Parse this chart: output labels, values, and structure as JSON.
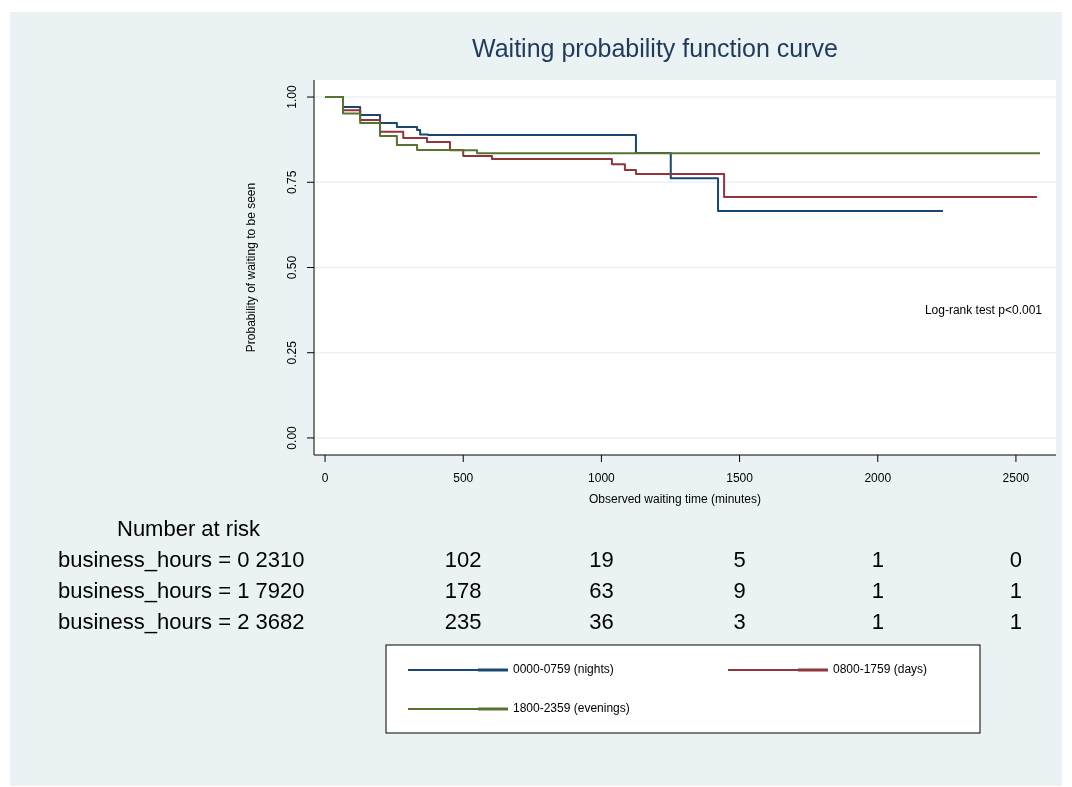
{
  "chart_data": {
    "type": "step",
    "title": "Waiting probability function curve",
    "xlabel": "Observed waiting time (minutes)",
    "ylabel": "Probability of waiting to be seen",
    "xlim": [
      -40,
      2645
    ],
    "ylim": [
      -0.05,
      1.05
    ],
    "xticks": [
      0,
      500,
      1000,
      1500,
      2000,
      2500
    ],
    "yticks": [
      {
        "value": 0,
        "label": "0.00"
      },
      {
        "value": 0.25,
        "label": "0.25"
      },
      {
        "value": 0.5,
        "label": "0.50"
      },
      {
        "value": 0.75,
        "label": "0.75"
      },
      {
        "value": 1,
        "label": "1.00"
      }
    ],
    "grid": "y",
    "legend": "bottom",
    "line_style": "solid",
    "series": [
      {
        "name": "0000-0759 (nights)",
        "color": "#1a476f",
        "x": [
          0,
          65,
          127,
          199,
          260,
          333,
          344,
          373,
          1125,
          1251,
          1422,
          2236
        ],
        "values": [
          1,
          0.971,
          0.947,
          0.924,
          0.912,
          0.903,
          0.89,
          0.889,
          0.836,
          0.762,
          0.666,
          0.666
        ]
      },
      {
        "name": "0800-1759 (days)",
        "color": "#90353b",
        "x": [
          0,
          65,
          127,
          199,
          283,
          369,
          452,
          500,
          604,
          1038,
          1085,
          1125,
          1444,
          2576
        ],
        "values": [
          1,
          0.961,
          0.933,
          0.898,
          0.88,
          0.868,
          0.845,
          0.827,
          0.818,
          0.803,
          0.786,
          0.774,
          0.707,
          0.707
        ]
      },
      {
        "name": "1800-2359 (evenings)",
        "color": "#55752f",
        "x": [
          0,
          65,
          127,
          199,
          260,
          333,
          452,
          550,
          2587
        ],
        "values": [
          1,
          0.952,
          0.924,
          0.886,
          0.859,
          0.845,
          0.844,
          0.835,
          0.835
        ]
      }
    ],
    "annotations": [
      "Log-rank test p<0.001",
      "Number at risk",
      "business_hours = 0 2310",
      "102",
      "19",
      "5",
      "1",
      "0",
      "business_hours = 1 7920",
      "178",
      "63",
      "9",
      "1",
      "1",
      "business_hours = 2 3682",
      "235",
      "36",
      "3",
      "1",
      "1"
    ]
  }
}
